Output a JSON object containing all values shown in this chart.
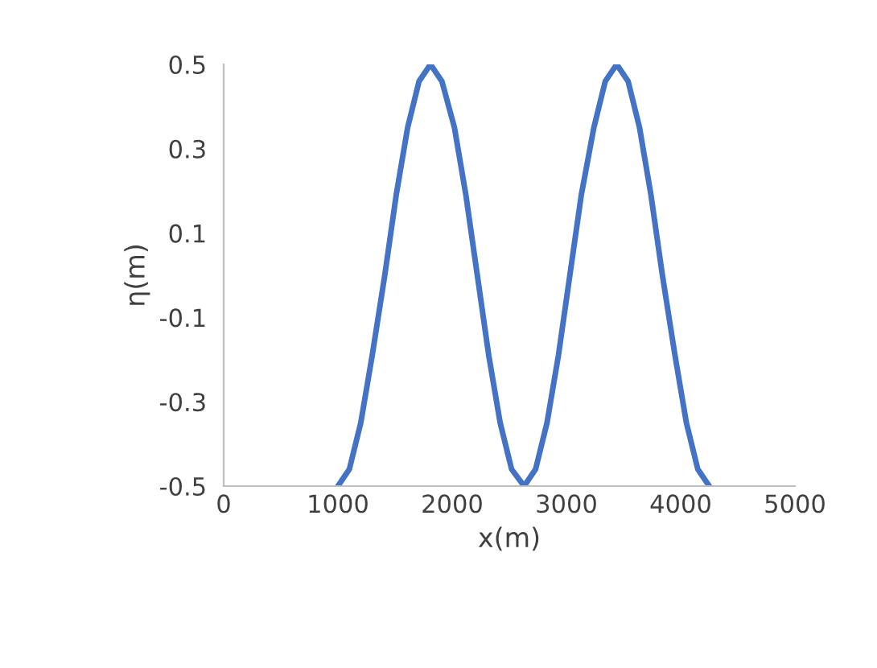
{
  "chart_data": {
    "type": "line",
    "xlabel": "x(m)",
    "ylabel": "η(m)",
    "x": [
      1000,
      1100,
      1200,
      1300,
      1410,
      1510,
      1610,
      1710,
      1810,
      1910,
      2020,
      2120,
      2220,
      2320,
      2420,
      2520,
      2630,
      2730,
      2830,
      2930,
      3030,
      3130,
      3240,
      3340,
      3440,
      3540,
      3640,
      3740,
      3840,
      3950,
      4050,
      4150,
      4250
    ],
    "series": [
      {
        "color": "#4472c4",
        "values": [
          -0.5,
          -0.46,
          -0.35,
          -0.19,
          0,
          0.19,
          0.35,
          0.46,
          0.5,
          0.46,
          0.35,
          0.19,
          0,
          -0.19,
          -0.35,
          -0.46,
          -0.5,
          -0.46,
          -0.35,
          -0.19,
          0,
          0.19,
          0.35,
          0.46,
          0.5,
          0.46,
          0.35,
          0.19,
          0,
          -0.19,
          -0.35,
          -0.46,
          -0.5
        ]
      }
    ],
    "xlim": [
      0,
      5000
    ],
    "xticks": [
      0,
      1000,
      2000,
      3000,
      4000,
      5000
    ],
    "ylim": [
      -0.5,
      0.5
    ],
    "yticks": [
      -0.5,
      -0.3,
      -0.1,
      0.1,
      0.3,
      0.5
    ],
    "grid": false,
    "marker": "none",
    "line_style": "solid"
  }
}
